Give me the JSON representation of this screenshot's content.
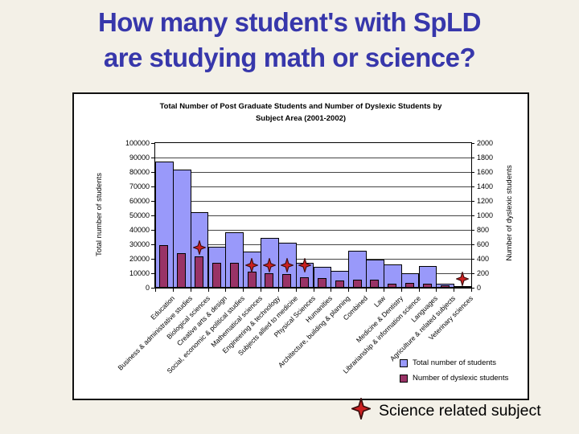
{
  "slide": {
    "title_lines": [
      "How many student's with SpLD",
      "are studying math or science?"
    ]
  },
  "colors": {
    "slide_background": "#f3f0e7",
    "title_text": "#3737ab",
    "total_bar": "#9999fa",
    "dyslexic_bar": "#993366",
    "star": "#cc2020"
  },
  "chart_data": {
    "type": "bar",
    "title_lines": [
      "Total Number of Post Graduate Students and Number of Dyslexic Students by",
      "Subject Area (2001-2002)"
    ],
    "categories": [
      "Education",
      "Business & administrative studies",
      "Biological sciences",
      "Creative arts & design",
      "Social, economic & political studies",
      "Mathematical sciences",
      "Engineering & technology",
      "Subjects allied to medicine",
      "Physical Sciences",
      "Humanities",
      "Architecture, building & planning",
      "Combined",
      "Law",
      "Medicine & Dentistry",
      "Librarianship & information science",
      "Languages",
      "Agriculture & related subjects",
      "Veterinary sciences"
    ],
    "series": [
      {
        "name": "Total number of students",
        "axis": "left",
        "color": "#9999fa",
        "values": [
          87500,
          81500,
          52000,
          28500,
          38500,
          25000,
          34500,
          31000,
          17500,
          14500,
          11500,
          25500,
          19500,
          16000,
          10000,
          15000,
          2800,
          1000
        ]
      },
      {
        "name": "Number of dyslexic students",
        "axis": "right",
        "color": "#993366",
        "values": [
          590,
          475,
          430,
          340,
          340,
          225,
          200,
          190,
          140,
          130,
          105,
          115,
          110,
          60,
          70,
          55,
          30,
          10
        ]
      }
    ],
    "left_axis": {
      "label": "Total number of students",
      "min": 0,
      "max": 100000,
      "step": 10000
    },
    "right_axis": {
      "label": "Number of dyslexic students",
      "min": 0,
      "max": 2000,
      "step": 200
    },
    "grid": true,
    "legend_position": "inside-bottom-right",
    "science_markers": {
      "label": "Science related subject",
      "marker": "red-four-point-star",
      "points": [
        {
          "category": "Biological sciences",
          "index": 2,
          "y_left_scale": 28000
        },
        {
          "category": "Mathematical sciences",
          "index": 5,
          "y_left_scale": 15500
        },
        {
          "category": "Engineering & technology",
          "index": 6,
          "y_left_scale": 15500
        },
        {
          "category": "Subjects allied to medicine",
          "index": 7,
          "y_left_scale": 15500
        },
        {
          "category": "Physical Sciences",
          "index": 8,
          "y_left_scale": 15500
        },
        {
          "category": "Veterinary sciences",
          "index": 17,
          "y_left_scale": 6000
        }
      ]
    }
  },
  "footer": {
    "science_legend_label": "Science related subject"
  }
}
